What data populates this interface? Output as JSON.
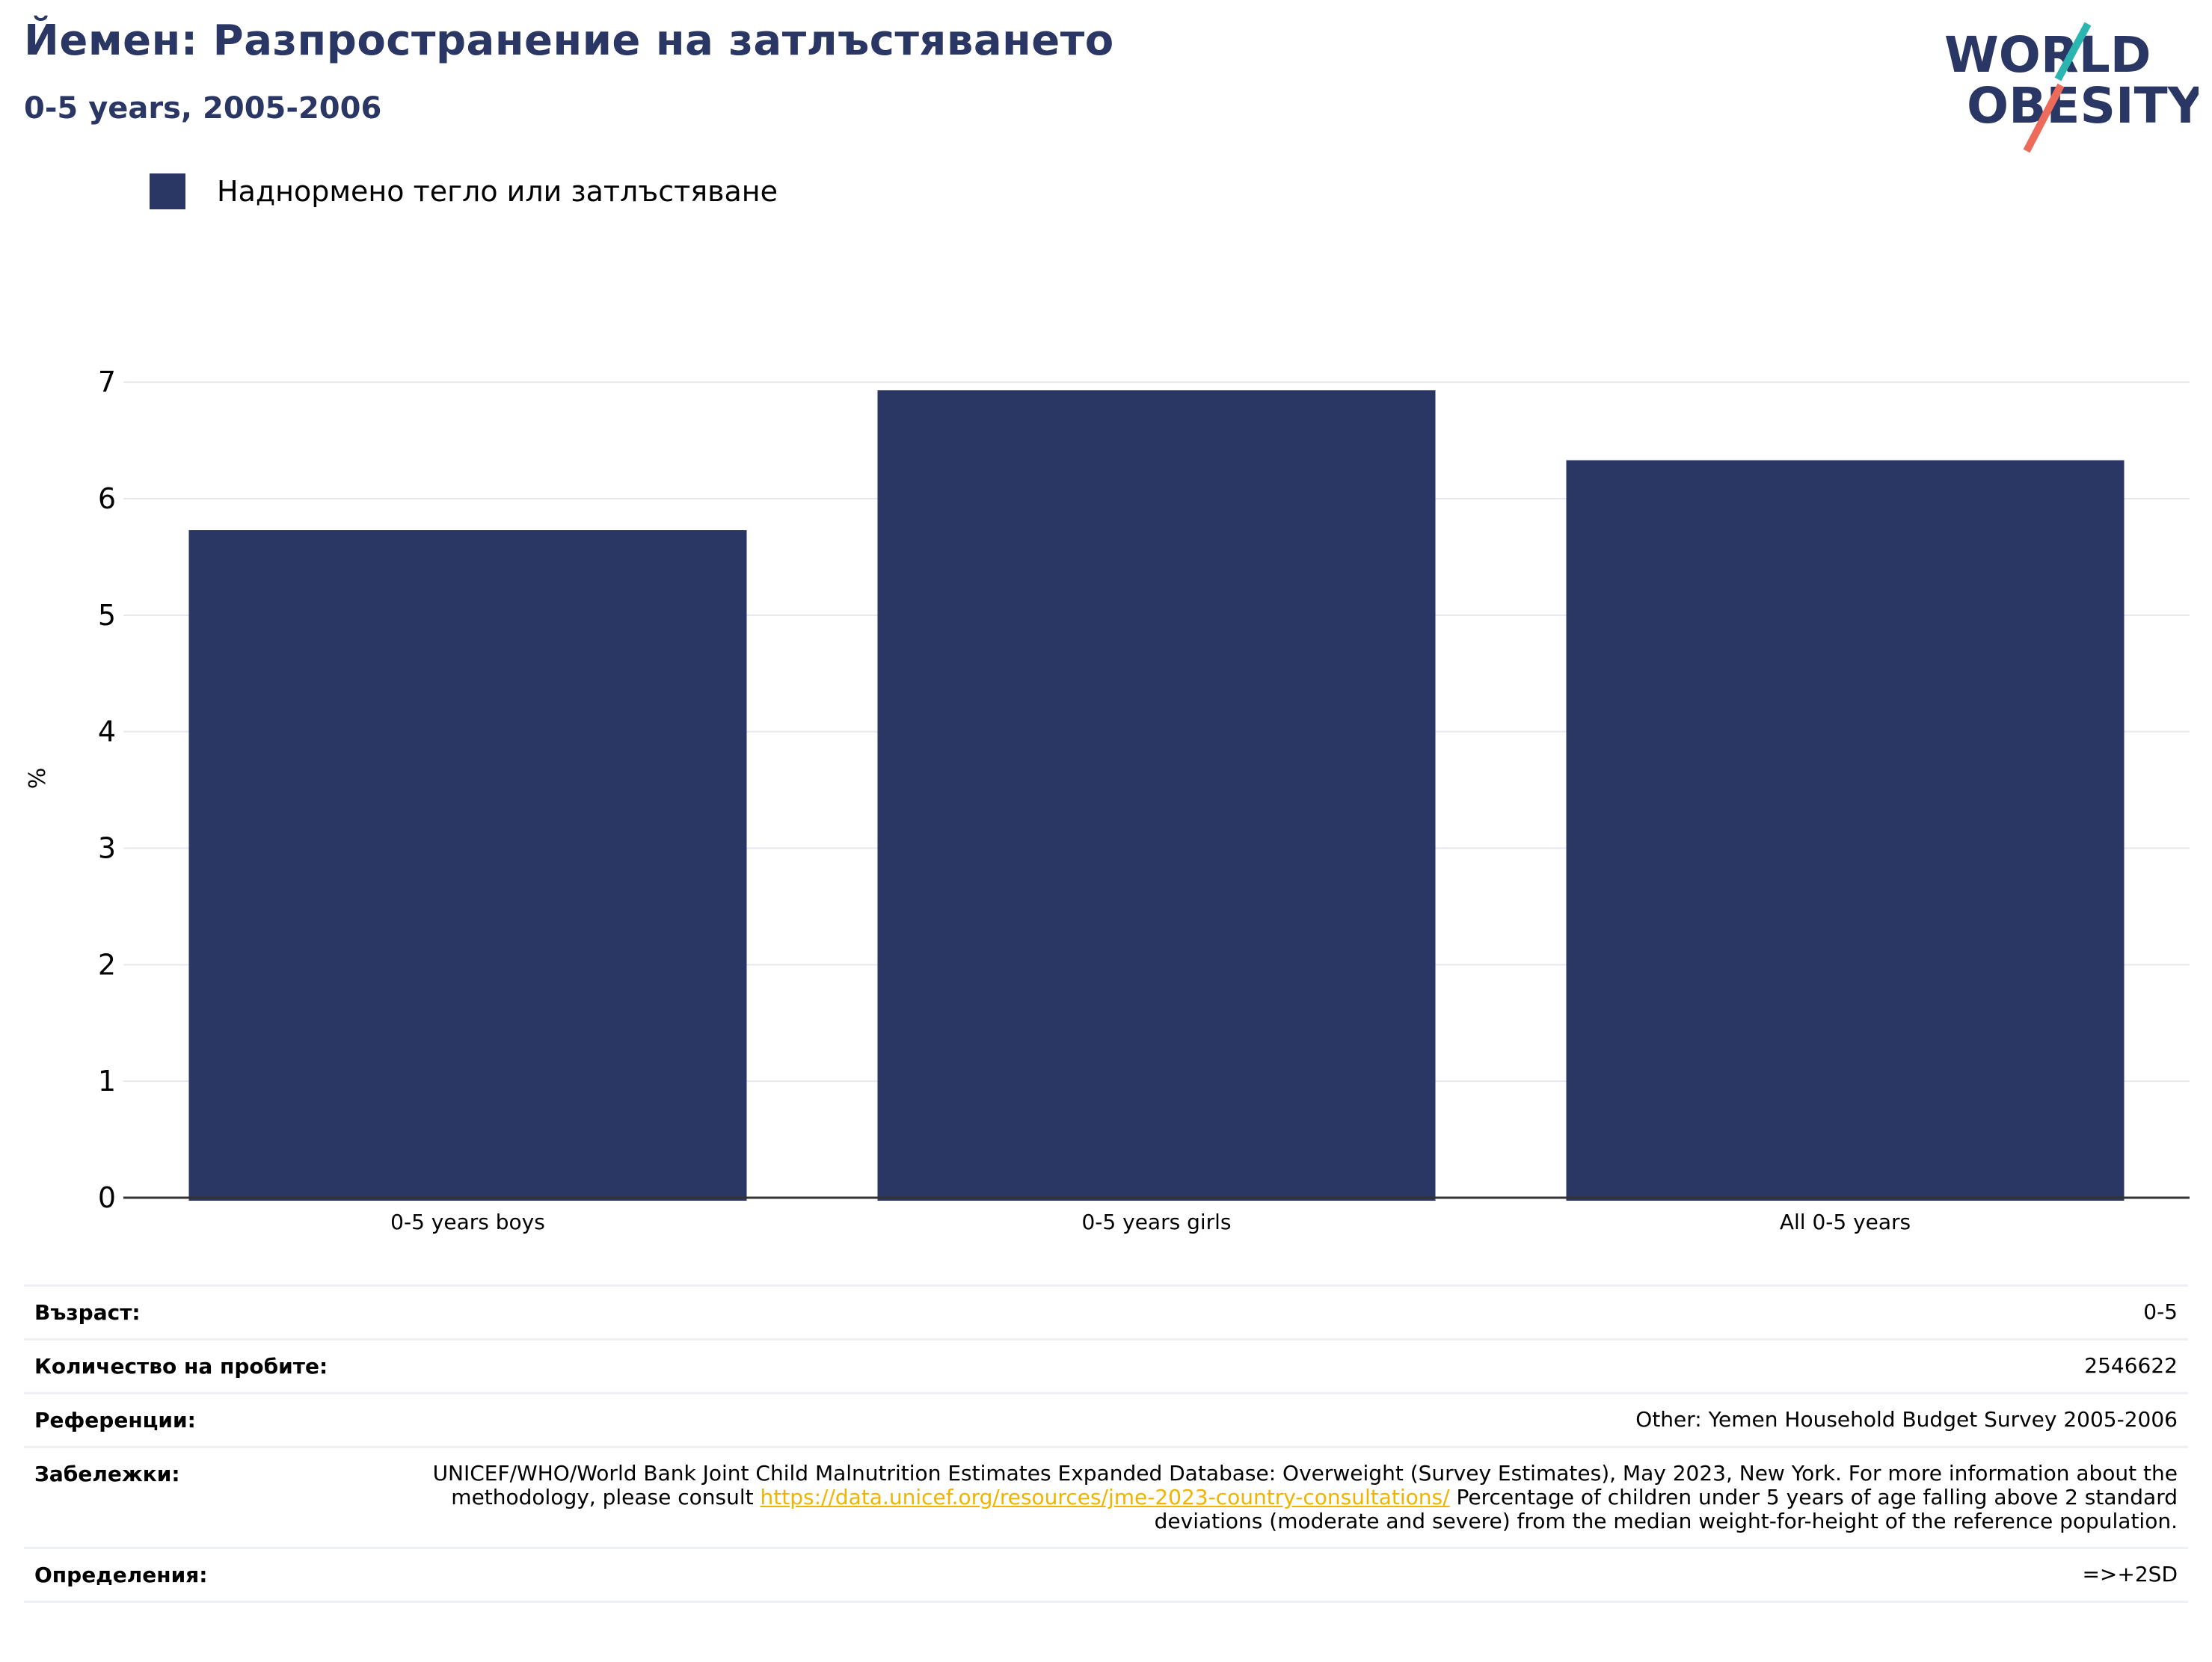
{
  "header": {
    "title": "Йемен: Разпространение на затлъстяването",
    "subtitle": "0-5 years, 2005-2006"
  },
  "logo": {
    "line1": "WORLD",
    "line2": "OBESITY"
  },
  "legend": {
    "label": "Наднормено тегло или затлъстяване",
    "color": "#2a3663"
  },
  "chart_data": {
    "type": "bar",
    "categories": [
      "0-5 years boys",
      "0-5 years girls",
      "All 0-5 years"
    ],
    "series": [
      {
        "name": "Наднормено тегло или затлъстяване",
        "values": [
          5.73,
          6.93,
          6.33
        ],
        "color": "#2a3663"
      }
    ],
    "ylabel": "%",
    "xlabel": "",
    "ylim": [
      0,
      7.2
    ],
    "yticks": [
      0,
      1,
      2,
      3,
      4,
      5,
      6,
      7
    ],
    "grid": true,
    "legend_position": "top-left"
  },
  "info": {
    "age_label": "Възраст:",
    "age_value": "0-5",
    "sample_label": "Количество на пробите:",
    "sample_value": "2546622",
    "refs_label": "Референции:",
    "refs_value": "Other: Yemen Household Budget Survey 2005-2006",
    "notes_label": "Забележки:",
    "notes_before": "UNICEF/WHO/World Bank Joint Child Malnutrition Estimates Expanded Database: Overweight (Survey Estimates), May 2023, New York. For more information about the methodology, please consult ",
    "notes_link": "https://data.unicef.org/resources/jme-2023-country-consultations/",
    "notes_after": " Percentage of children under 5 years of age falling above 2 standard deviations (moderate and severe) from the median weight-for-height of the reference population.",
    "defs_label": "Определения:",
    "defs_value": "=>+2SD"
  }
}
